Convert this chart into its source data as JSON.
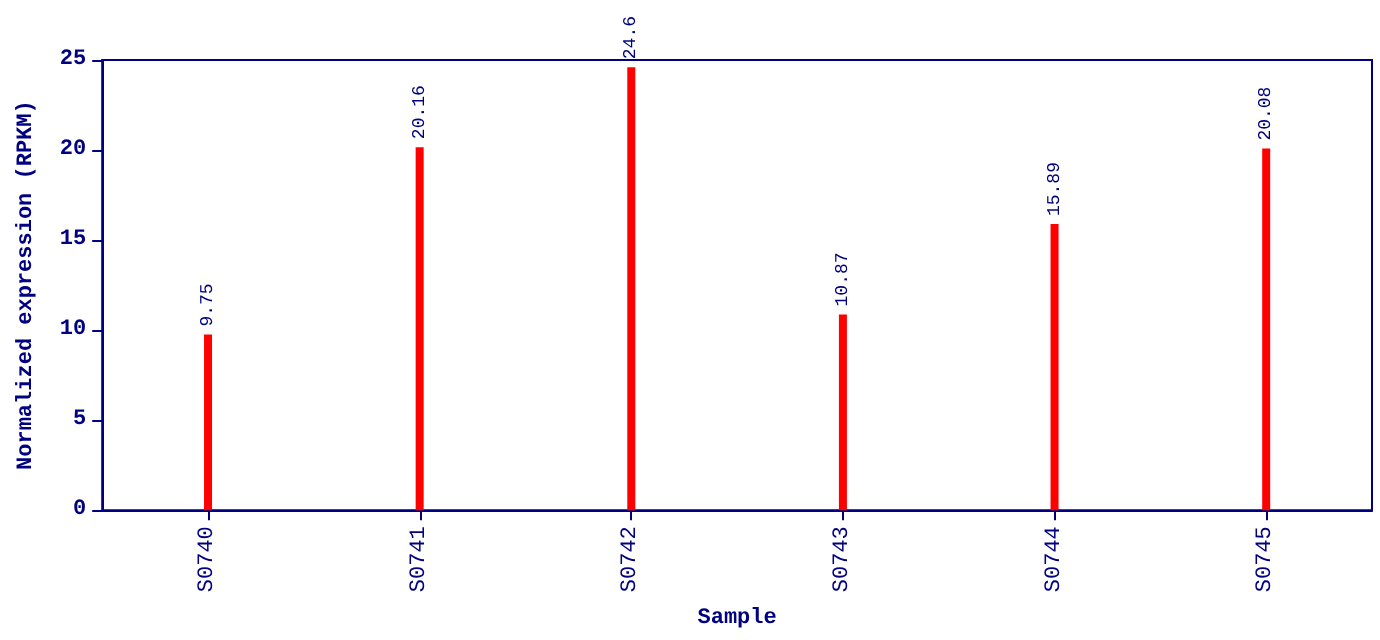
{
  "chart_data": {
    "type": "bar",
    "xlabel": "Sample",
    "ylabel": "Normalized expression (RPKM)",
    "categories": [
      "S0740",
      "S0741",
      "S0742",
      "S0743",
      "S0744",
      "S0745"
    ],
    "values": [
      9.75,
      20.16,
      24.6,
      10.87,
      15.89,
      20.08
    ],
    "color": "#ff0000",
    "ylim": [
      0,
      25
    ],
    "yticks": [
      0,
      5,
      10,
      15,
      20,
      25
    ],
    "data_labels": true,
    "grid": false
  }
}
